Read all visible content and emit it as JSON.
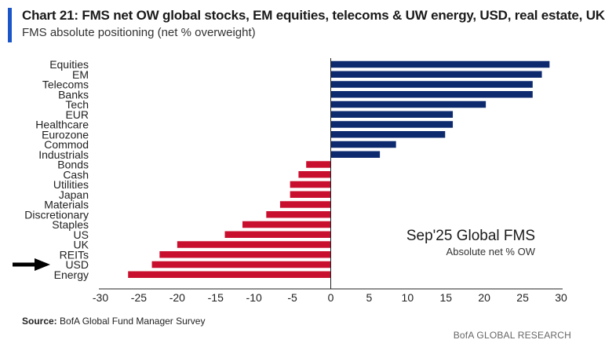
{
  "title": "Chart 21: FMS net OW global stocks, EM equities, telecoms & UW energy, USD, real estate, UK",
  "subtitle": "FMS absolute positioning (net % overweight)",
  "source_label": "Source:",
  "source_text": "BofA Global Fund Manager Survey",
  "brand": "BofA GLOBAL RESEARCH",
  "colors": {
    "positive": "#0d2a6e",
    "negative": "#c8102e",
    "axis": "#222222"
  },
  "chart_data": {
    "type": "bar",
    "orientation": "horizontal",
    "title": "Sep'25 Global FMS",
    "annotation_subtitle": "Absolute net % OW",
    "xlabel": "",
    "ylabel": "",
    "xlim": [
      -30,
      30
    ],
    "xticks": [
      -30,
      -25,
      -20,
      -15,
      -10,
      -5,
      0,
      5,
      10,
      15,
      20,
      25,
      30
    ],
    "grid": false,
    "categories": [
      "Equities",
      "EM",
      "Telecoms",
      "Banks",
      "Tech",
      "EUR",
      "Healthcare",
      "Eurozone",
      "Commod",
      "Industrials",
      "Bonds",
      "Cash",
      "Utilities",
      "Japan",
      "Materials",
      "Discretionary",
      "Staples",
      "US",
      "UK",
      "REITs",
      "USD",
      "Energy"
    ],
    "values": [
      28.5,
      27.5,
      26.3,
      26.3,
      20.2,
      15.9,
      15.9,
      14.9,
      8.5,
      6.4,
      -3.2,
      -4.2,
      -5.3,
      -5.3,
      -6.6,
      -8.4,
      -11.5,
      -13.8,
      -20.0,
      -22.3,
      -23.3,
      -26.4
    ],
    "highlight": "USD"
  }
}
